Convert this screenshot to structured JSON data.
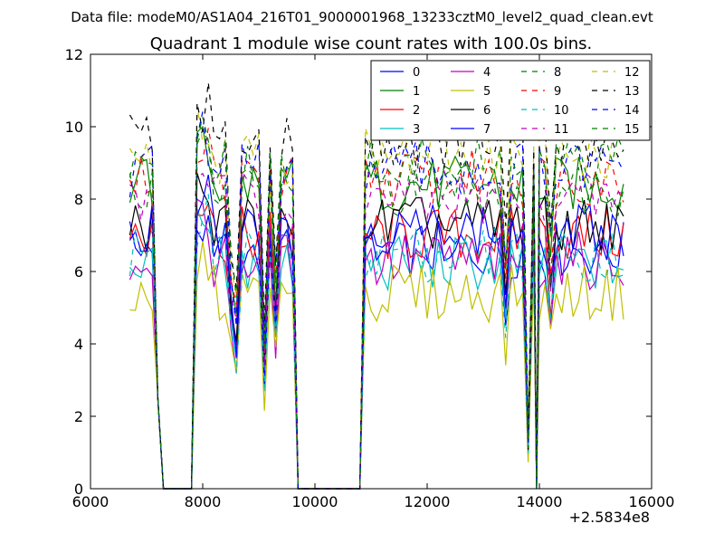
{
  "suptitle": "Data file: modeM0/AS1A04_216T01_9000001968_13233cztM0_level2_quad_clean.evt",
  "chart_data": {
    "type": "line",
    "title": "Quadrant 1 module wise count rates with 100.0s bins.",
    "xlabel": "",
    "ylabel": "",
    "xlim": [
      6000,
      16000
    ],
    "ylim": [
      0,
      12
    ],
    "x_offset_label": "+2.5834e8",
    "x_ticks": [
      6000,
      8000,
      10000,
      12000,
      14000,
      16000
    ],
    "x_tick_labels": [
      "6000",
      "8000",
      "10000",
      "12000",
      "14000",
      "16000"
    ],
    "y_ticks": [
      0,
      2,
      4,
      6,
      8,
      10,
      12
    ],
    "y_tick_labels": [
      "0",
      "2",
      "4",
      "6",
      "8",
      "10",
      "12"
    ],
    "grid": false,
    "legend_position": "top-right",
    "x_segments": [
      {
        "start": 6700,
        "end": 7100,
        "step": 100
      },
      {
        "start": 7900,
        "end": 9600,
        "step": 100
      },
      {
        "start": 10900,
        "end": 13900,
        "step": 100
      },
      {
        "start": 14000,
        "end": 15500,
        "step": 100
      }
    ],
    "zero_gaps": [
      [
        7200,
        7800
      ],
      [
        9700,
        10800
      ],
      [
        13950,
        13950
      ]
    ],
    "series": [
      {
        "name": "0",
        "color": "#0000ff",
        "dash": false,
        "level": 6.6
      },
      {
        "name": "1",
        "color": "#008000",
        "dash": false,
        "level": 8.4
      },
      {
        "name": "2",
        "color": "#ff0000",
        "dash": false,
        "level": 7.0
      },
      {
        "name": "3",
        "color": "#00bfbf",
        "dash": false,
        "level": 6.2
      },
      {
        "name": "4",
        "color": "#bf00bf",
        "dash": false,
        "level": 6.3
      },
      {
        "name": "5",
        "color": "#bfbf00",
        "dash": false,
        "level": 5.4
      },
      {
        "name": "6",
        "color": "#000000",
        "dash": false,
        "level": 7.3
      },
      {
        "name": "7",
        "color": "#0000ff",
        "dash": false,
        "level": 7.1
      },
      {
        "name": "8",
        "color": "#008000",
        "dash": true,
        "level": 8.3
      },
      {
        "name": "9",
        "color": "#ff0000",
        "dash": true,
        "level": 8.6
      },
      {
        "name": "10",
        "color": "#00bfbf",
        "dash": true,
        "level": 6.5
      },
      {
        "name": "11",
        "color": "#bf00bf",
        "dash": true,
        "level": 8.0
      },
      {
        "name": "12",
        "color": "#bfbf00",
        "dash": true,
        "level": 9.2
      },
      {
        "name": "13",
        "color": "#000000",
        "dash": true,
        "level": 9.6
      },
      {
        "name": "14",
        "color": "#0000ff",
        "dash": true,
        "level": 8.8
      },
      {
        "name": "15",
        "color": "#008000",
        "dash": true,
        "level": 8.9
      }
    ],
    "dip_points": [
      {
        "x": 8500,
        "factor": 0.72
      },
      {
        "x": 8600,
        "factor": 0.55
      },
      {
        "x": 9100,
        "factor": 0.45
      },
      {
        "x": 9300,
        "factor": 0.65
      },
      {
        "x": 13400,
        "factor": 0.72
      },
      {
        "x": 13800,
        "factor": 0.15
      },
      {
        "x": 14200,
        "factor": 0.75
      }
    ]
  }
}
